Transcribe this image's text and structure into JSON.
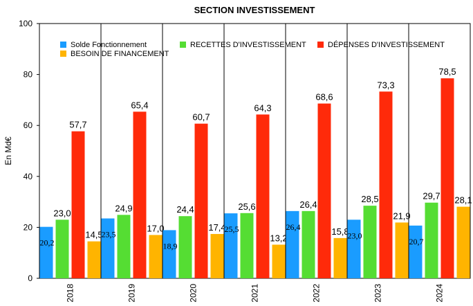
{
  "chart_data": {
    "type": "bar",
    "title": "SECTION INVESTISSEMENT",
    "xlabel": "",
    "ylabel": "En Md€",
    "ylim": [
      0,
      100
    ],
    "yticks": [
      "0",
      "20",
      "40",
      "60",
      "80",
      "100"
    ],
    "categories": [
      "2018",
      "2019",
      "2020",
      "2021",
      "2022",
      "2023",
      "2024"
    ],
    "series": [
      {
        "name": "Solde Fonctionnement",
        "color": "#1a9cff",
        "values": [
          20.2,
          23.5,
          18.9,
          25.5,
          26.4,
          23.0,
          20.7
        ],
        "labels": [
          "20,2",
          "23,5",
          "18,9",
          "25,5",
          "26,4",
          "23,0",
          "20,7"
        ]
      },
      {
        "name": "RECETTES D'INVESTISSEMENT",
        "color": "#55dd33",
        "values": [
          23.0,
          24.9,
          24.4,
          25.6,
          26.4,
          28.5,
          29.7
        ],
        "labels": [
          "23,0",
          "24,9",
          "24,4",
          "25,6",
          "26,4",
          "28,5",
          "29,7"
        ]
      },
      {
        "name": "DÉPENSES D'INVESTISSEMENT",
        "color": "#ff2a0a",
        "values": [
          57.7,
          65.4,
          60.7,
          64.3,
          68.6,
          73.3,
          78.5
        ],
        "labels": [
          "57,7",
          "65,4",
          "60,7",
          "64,3",
          "68,6",
          "73,3",
          "78,5"
        ]
      },
      {
        "name": "BESOIN DE FINANCEMENT",
        "color": "#ffb400",
        "values": [
          14.5,
          17.0,
          17.4,
          13.2,
          15.8,
          21.9,
          28.1
        ],
        "labels": [
          "14,5",
          "17,0",
          "17,4",
          "13,2",
          "15,8",
          "21,9",
          "28,1"
        ]
      }
    ],
    "legend": "top",
    "grid": "vertical separators between categories"
  }
}
